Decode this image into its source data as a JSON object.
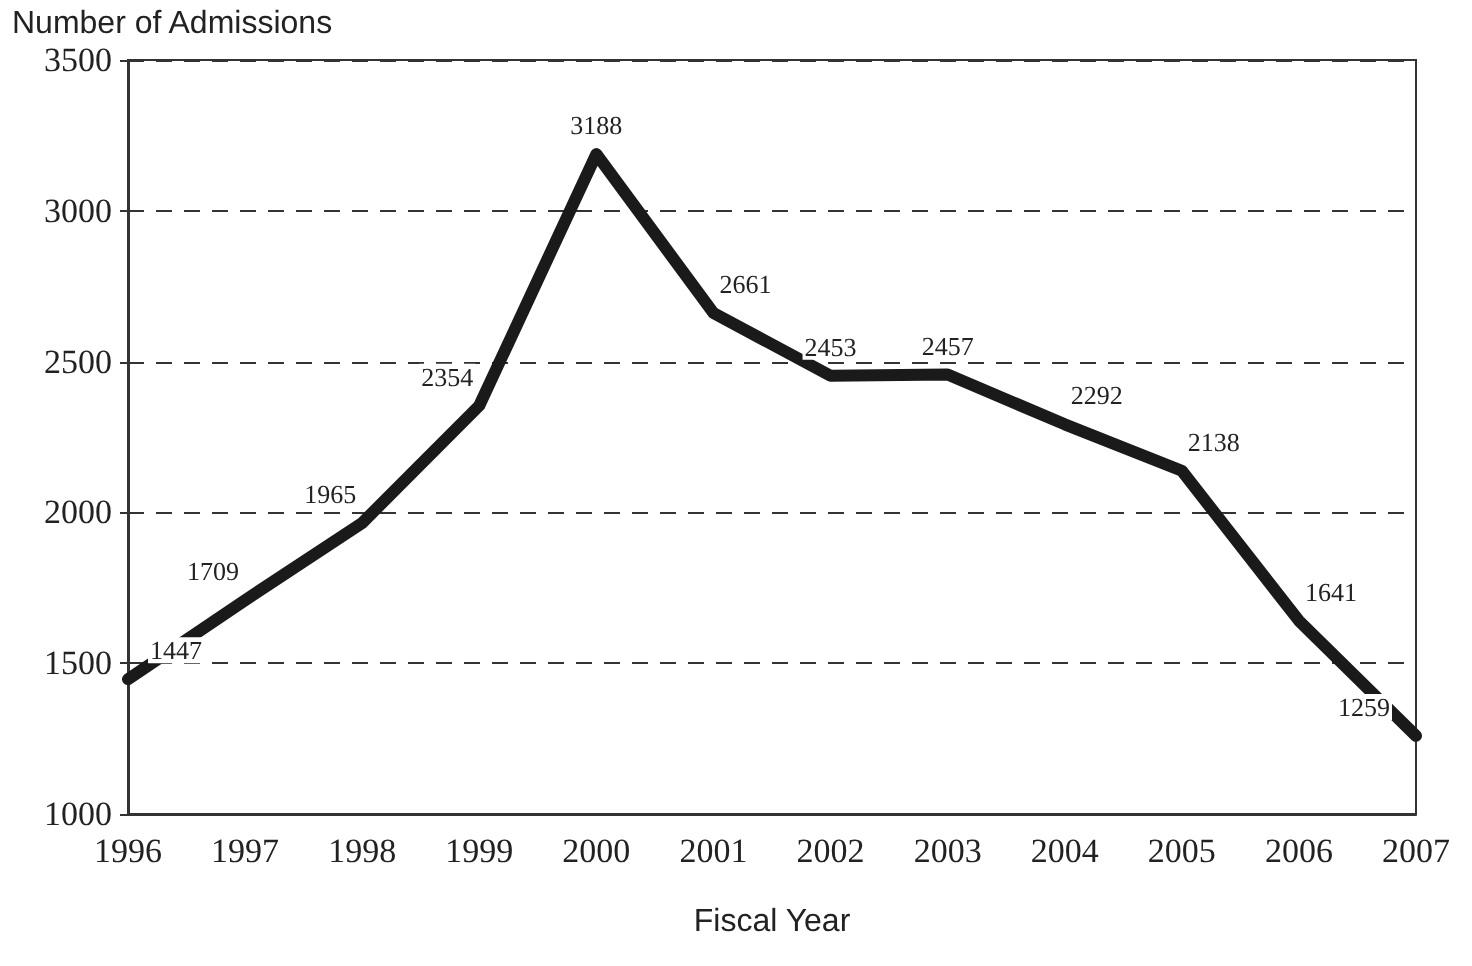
{
  "chart_data": {
    "type": "line",
    "ylabel": "Number of Admissions",
    "xlabel": "Fiscal Year",
    "categories": [
      "1996",
      "1997",
      "1998",
      "1999",
      "2000",
      "2001",
      "2002",
      "2003",
      "2004",
      "2005",
      "2006",
      "2007"
    ],
    "series": [
      {
        "color": "#1a1a1a",
        "values": [
          1447,
          1709,
          1965,
          2354,
          3188,
          2661,
          2453,
          2457,
          2292,
          2138,
          1641,
          1259
        ]
      }
    ],
    "ylim": [
      1000,
      3500
    ],
    "yticks": [
      1000,
      1500,
      2000,
      2500,
      3000,
      3500
    ],
    "grid": "y",
    "marker": "none",
    "line_style": "solid",
    "data_labels": true
  }
}
